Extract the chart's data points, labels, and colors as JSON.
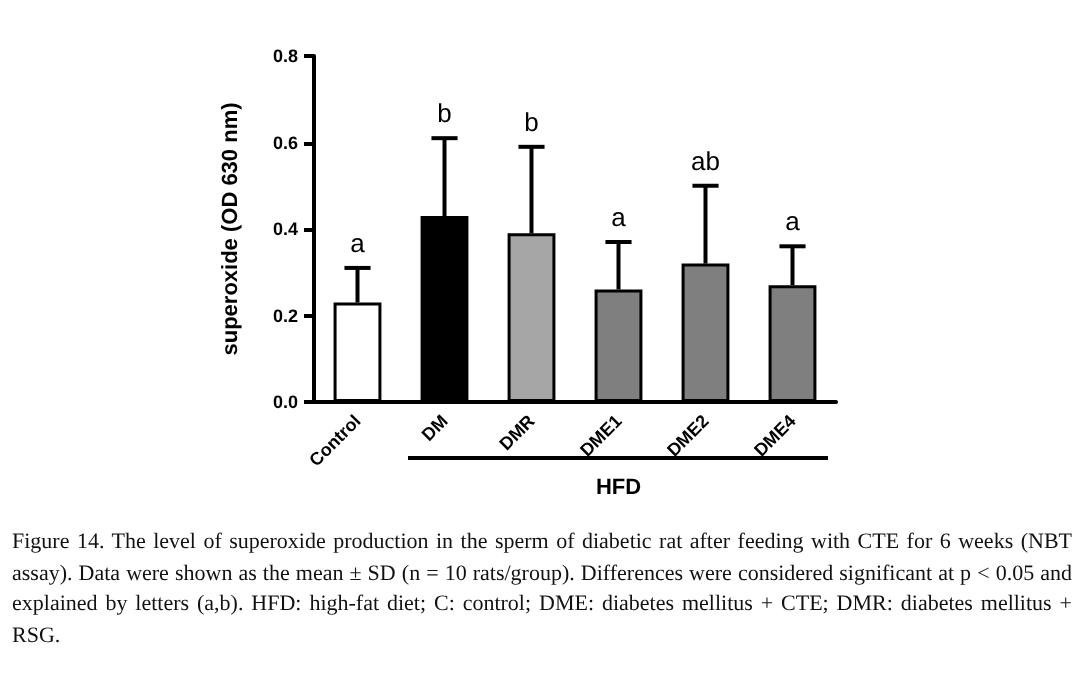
{
  "chart_data": {
    "type": "bar",
    "ylabel": "superoxide (OD 630 nm)",
    "categories": [
      "Control",
      "DM",
      "DMR",
      "DME1",
      "DME2",
      "DME4"
    ],
    "values": [
      0.23,
      0.43,
      0.39,
      0.26,
      0.32,
      0.27
    ],
    "errors": [
      [
        0.23,
        0.31
      ],
      [
        0.43,
        0.61
      ],
      [
        0.39,
        0.59
      ],
      [
        0.26,
        0.37
      ],
      [
        0.32,
        0.5
      ],
      [
        0.27,
        0.36
      ]
    ],
    "colors": [
      "#ffffff",
      "#000000",
      "#a6a6a6",
      "#7f7f7f",
      "#7f7f7f",
      "#7f7f7f"
    ],
    "ylim": [
      0,
      0.8
    ],
    "yticks": [
      {
        "value": 0,
        "label": "0.0"
      },
      0.2,
      0.4,
      0.6,
      0.8
    ],
    "grid": false,
    "annotations": [
      {
        "text": "a",
        "x": "Control",
        "y": 0.31
      },
      {
        "text": "b",
        "x": "DM",
        "y": 0.61
      },
      {
        "text": "b",
        "x": "DMR",
        "y": 0.59
      },
      {
        "text": "a",
        "x": "DME1",
        "y": 0.37
      },
      {
        "text": "ab",
        "x": "DME2",
        "y": 0.5
      },
      {
        "text": "a",
        "x": "DME4",
        "y": 0.36
      },
      "HFD",
      "Figure 14. The level of superoxide production in the sperm of diabetic rat after feeding with CTE for 6 weeks (NBT assay). Data were shown as the mean ± SD (n = 10 rats/group). Differences were considered significant at p < 0.05 and explained by letters (a,b). HFD: high-fat diet; C: control; DME: diabetes mellitus + CTE; DMR: diabetes mellitus + RSG."
    ]
  }
}
